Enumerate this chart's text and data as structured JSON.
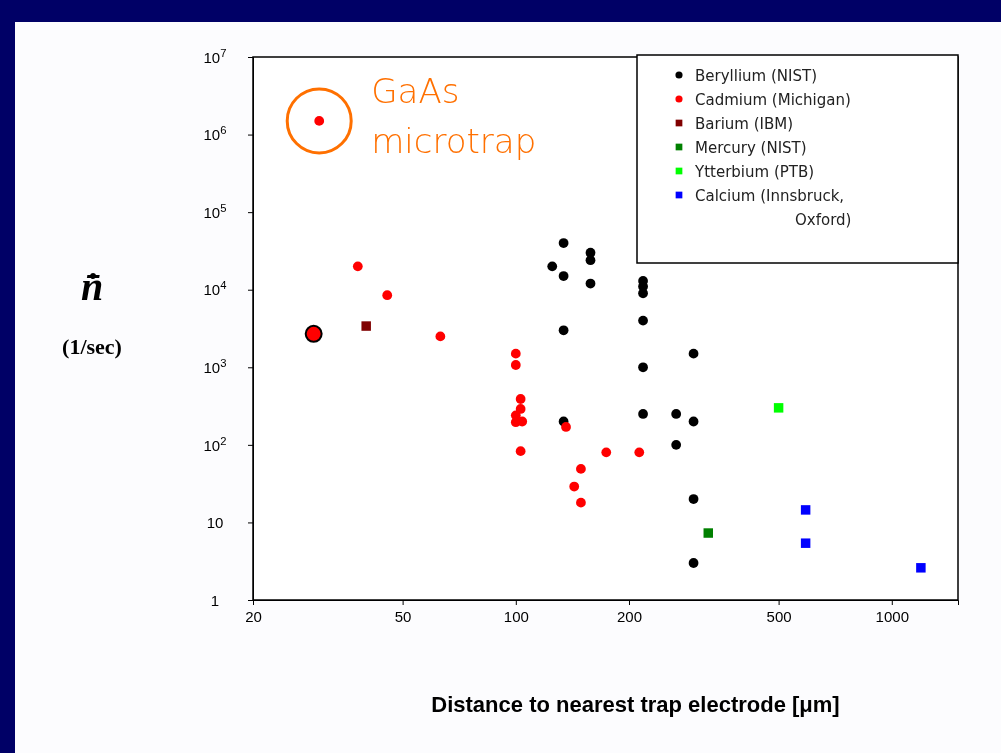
{
  "chart_data": {
    "type": "scatter",
    "xlabel": "Distance to nearest trap electrode [μm]",
    "ylabel": "n̄̇ (1/sec)",
    "log": "xy",
    "grid": false,
    "legend": "top right",
    "xlim": [
      20,
      1500
    ],
    "xticks": [
      20,
      50,
      100,
      200,
      500,
      1000
    ],
    "ylim": [
      1,
      10000000
    ],
    "yticks": [
      1,
      10,
      {
        "value": 100,
        "label": "10$^{2}$"
      },
      {
        "value": 1000,
        "label": "10$^{3}$"
      },
      {
        "value": 10000,
        "label": "10$^{4}$"
      },
      {
        "value": 100000,
        "label": "10$^{5}$"
      },
      {
        "value": 1000000,
        "label": "10$^{6}$"
      },
      {
        "value": 10000000,
        "label": "10$^{7}$"
      }
    ],
    "annotations": [
      {
        "text": "GaAs microtrap",
        "x": 30,
        "y": 1500000
      }
    ],
    "series": [
      {
        "name": "Beryllium (NIST)",
        "color": "#000000",
        "marker": "circle",
        "x": [
          134,
          125,
          134,
          158,
          158,
          158,
          134,
          218,
          218,
          218,
          218,
          218,
          218,
          267,
          267,
          297,
          297,
          297,
          297,
          134
        ],
        "values": [
          40000,
          20000,
          15000,
          30000,
          24000,
          12000,
          3000,
          13000,
          11000,
          9000,
          4000,
          1000,
          250,
          250,
          100,
          1500,
          200,
          20,
          3,
          200
        ]
      },
      {
        "name": "Cadmium (Michigan)",
        "color": "#ff0000",
        "marker": "circle",
        "x": [
          30,
          38,
          45.5,
          63,
          100,
          100,
          103,
          103,
          100,
          100,
          104,
          103,
          136,
          149,
          143,
          149,
          174,
          213
        ],
        "values": [
          1500000,
          20000,
          8500,
          2500,
          1500,
          1070,
          390,
          290,
          240,
          196,
          200,
          83,
          170,
          49,
          29,
          18,
          80,
          80
        ]
      },
      {
        "name": "Barium (IBM)",
        "color": "#800000",
        "marker": "square",
        "x": [
          40
        ],
        "values": [
          3400
        ]
      },
      {
        "name": "Mercury (NIST)",
        "color": "#008000",
        "marker": "square",
        "x": [
          325
        ],
        "values": [
          7.3
        ]
      },
      {
        "name": "Ytterbium (PTB)",
        "color": "#00ff00",
        "marker": "square",
        "x": [
          500
        ],
        "values": [
          300
        ]
      },
      {
        "name": "Calcium (Innsbruck, Oxford)",
        "color": "#0000ff",
        "marker": "square",
        "x": [
          590,
          590,
          1195
        ],
        "values": [
          14.5,
          5.4,
          2.6
        ]
      },
      {
        "color": "#ff0000",
        "marker": "circle",
        "x": [
          29
        ],
        "values": [
          2700
        ]
      }
    ]
  }
}
